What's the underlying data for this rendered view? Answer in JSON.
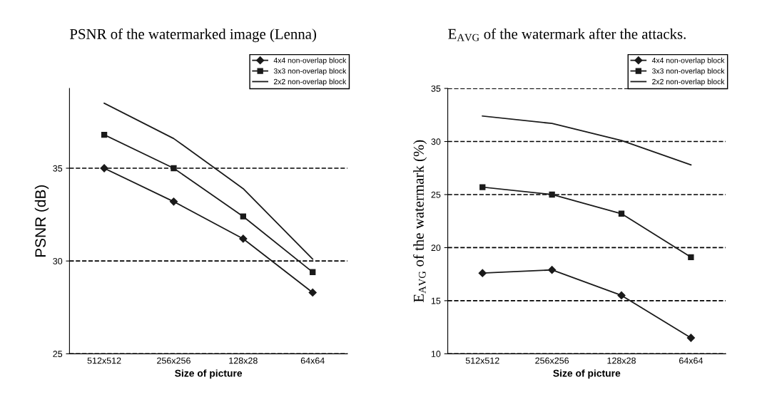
{
  "chart_data": [
    {
      "type": "line",
      "title": "PSNR of the watermarked image (Lenna)",
      "xlabel": "Size of picture",
      "ylabel": "PSNR (dB)",
      "categories": [
        "512x512",
        "256x256",
        "128x28",
        "64x64"
      ],
      "series": [
        {
          "name": "4x4 non-overlap block",
          "color": "#1a1a1a",
          "marker": "diamond",
          "values": [
            35.0,
            33.2,
            31.2,
            28.3
          ]
        },
        {
          "name": "3x3 non-overlap block",
          "color": "#1a1a1a",
          "marker": "square",
          "values": [
            36.8,
            35.0,
            32.4,
            29.4
          ]
        },
        {
          "name": "2x2 non-overlap block",
          "color": "#1a1a1a",
          "marker": "none",
          "values": [
            38.5,
            36.6,
            33.9,
            30.1
          ]
        }
      ],
      "ylim": [
        25,
        39.3
      ],
      "yticks": [
        25,
        30,
        35
      ],
      "grid": "y",
      "legend": "top right"
    },
    {
      "type": "line",
      "title": "E$_{AVG}$ of the watermark after the attacks.",
      "xlabel": "Size of picture",
      "ylabel": "E$_{AVG}$ of the watermark (%)",
      "categories": [
        "512x512",
        "256x256",
        "128x28",
        "64x64"
      ],
      "series": [
        {
          "name": "4x4 non-overlap block",
          "color": "#1a1a1a",
          "marker": "diamond",
          "values": [
            17.6,
            17.9,
            15.5,
            11.5
          ]
        },
        {
          "name": "3x3 non-overlap block",
          "color": "#1a1a1a",
          "marker": "square",
          "values": [
            25.7,
            25.0,
            23.2,
            19.1
          ]
        },
        {
          "name": "2x2 non-overlap block",
          "color": "#1a1a1a",
          "marker": "none",
          "values": [
            32.4,
            31.7,
            30.1,
            27.8
          ]
        }
      ],
      "ylim": [
        10,
        35
      ],
      "yticks": [
        10,
        15,
        20,
        25,
        30,
        35
      ],
      "grid": "y",
      "legend": "top right"
    }
  ]
}
